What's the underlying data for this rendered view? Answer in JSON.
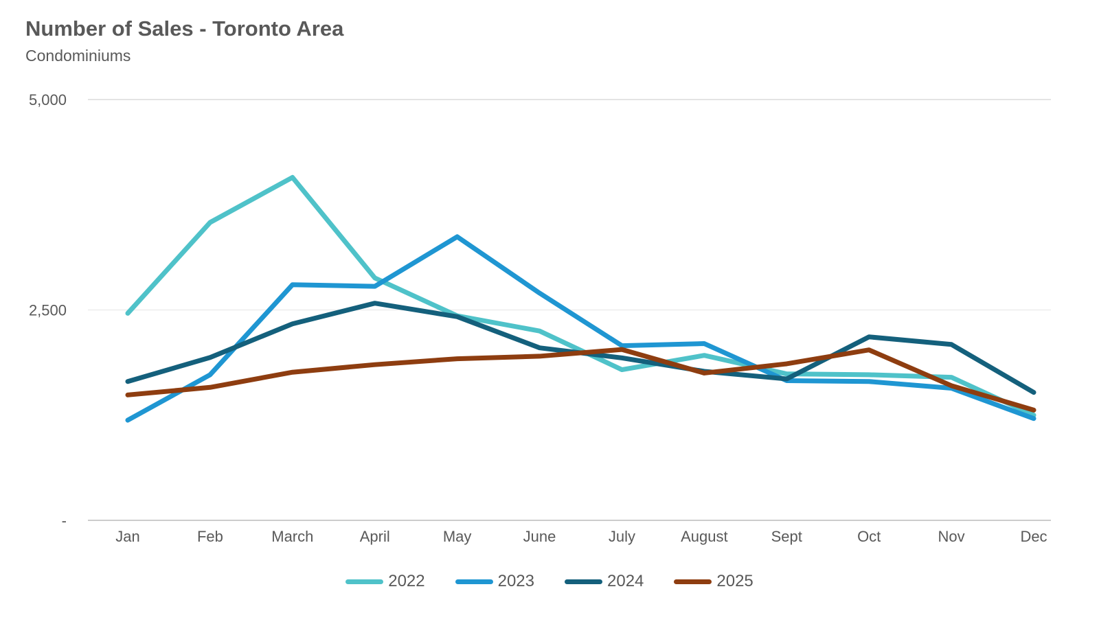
{
  "header": {
    "title": "Number of Sales - Toronto Area",
    "subtitle": "Condominiums"
  },
  "colors": {
    "text": "#595959",
    "gridline_top": "#DCDCDC",
    "gridline_mid": "#EAEAEA",
    "axis_baseline": "#CCCCCC",
    "series_2022": "#4FC2C9",
    "series_2023": "#1F96D2",
    "series_2024": "#14607C",
    "series_2025": "#8E3D10"
  },
  "chart_data": {
    "type": "line",
    "title": "Number of Sales - Toronto Area",
    "subtitle": "Condominiums",
    "xlabel": "",
    "ylabel": "",
    "ylim": [
      0,
      5000
    ],
    "grid": "horizontal",
    "legend_position": "bottom",
    "categories": [
      "Jan",
      "Feb",
      "March",
      "April",
      "May",
      "June",
      "July",
      "August",
      "Sept",
      "Oct",
      "Nov",
      "Dec"
    ],
    "y_ticks": [
      {
        "value": 5000,
        "label": "5,000"
      },
      {
        "value": 2500,
        "label": "2,500"
      },
      {
        "value": 0,
        "label": "-"
      }
    ],
    "series": [
      {
        "name": "2022",
        "color": "#4FC2C9",
        "values": [
          2460,
          3540,
          4075,
          2880,
          2430,
          2250,
          1790,
          1960,
          1740,
          1730,
          1700,
          1250
        ]
      },
      {
        "name": "2023",
        "color": "#1F96D2",
        "values": [
          1190,
          1730,
          2800,
          2780,
          3370,
          2700,
          2075,
          2100,
          1660,
          1650,
          1570,
          1210
        ]
      },
      {
        "name": "2024",
        "color": "#14607C",
        "values": [
          1650,
          1935,
          2335,
          2580,
          2420,
          2050,
          1930,
          1770,
          1680,
          2180,
          2090,
          1520
        ]
      },
      {
        "name": "2025",
        "color": "#8E3D10",
        "values": [
          1490,
          1580,
          1760,
          1850,
          1920,
          1950,
          2030,
          1750,
          1860,
          2025,
          1600,
          1310
        ]
      }
    ]
  }
}
